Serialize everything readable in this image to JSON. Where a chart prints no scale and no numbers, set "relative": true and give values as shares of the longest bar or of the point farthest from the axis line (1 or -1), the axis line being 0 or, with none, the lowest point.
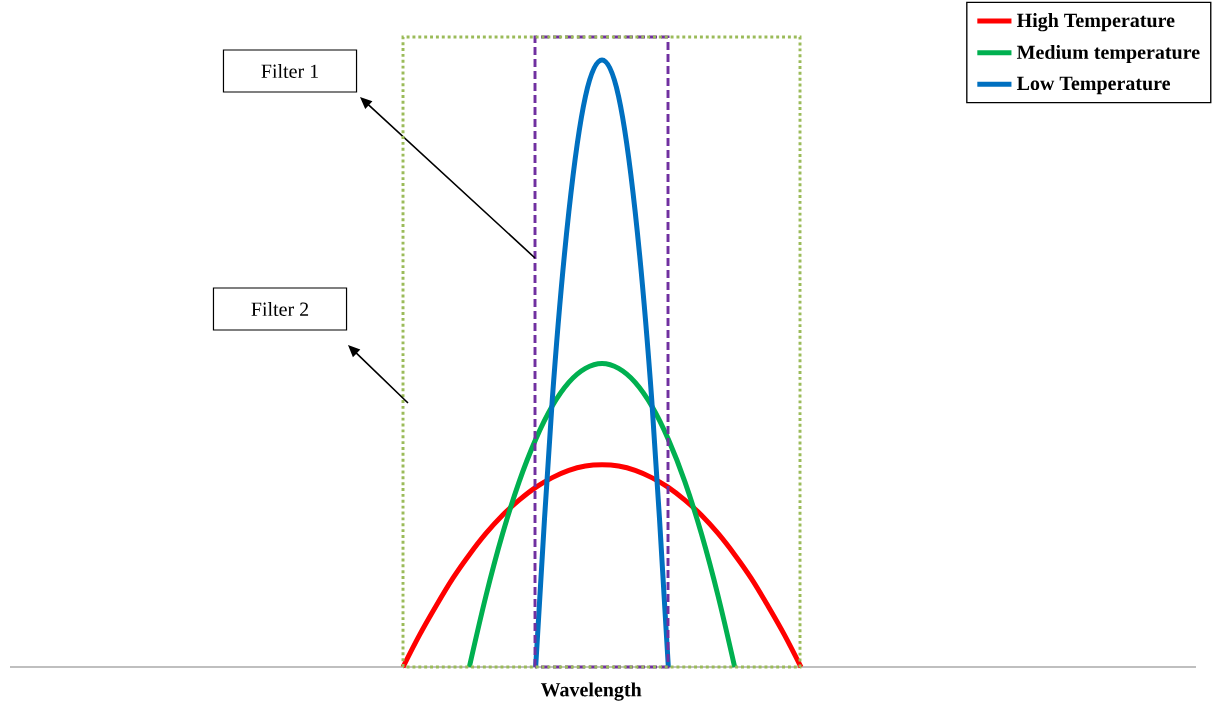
{
  "chart_data": {
    "type": "line",
    "relative": true,
    "xlabel": "Wavelength",
    "legend": "top right",
    "categories": [
      null,
      null,
      null,
      null,
      null,
      null,
      null,
      null,
      null,
      null,
      null,
      null,
      null,
      null,
      null,
      null,
      null,
      null,
      null,
      null,
      null,
      null,
      null,
      null,
      null
    ],
    "series": [
      {
        "name": "High Temperature",
        "color": "#ff0000",
        "values": [
          0,
          0.053,
          0.101,
          0.146,
          0.185,
          0.22,
          0.25,
          0.275,
          0.296,
          0.312,
          0.324,
          0.331,
          0.333,
          0.331,
          0.324,
          0.312,
          0.296,
          0.275,
          0.25,
          0.22,
          0.185,
          0.146,
          0.101,
          0.053,
          0
        ]
      },
      {
        "name": "Medium temperature",
        "color": "#00b050",
        "values": [
          null,
          null,
          null,
          null,
          0,
          0.117,
          0.219,
          0.305,
          0.375,
          0.43,
          0.469,
          0.492,
          0.5,
          0.492,
          0.469,
          0.43,
          0.375,
          0.305,
          0.219,
          0.117,
          0,
          null,
          null,
          null,
          null
        ]
      },
      {
        "name": "Low Temperature",
        "color": "#0070c0",
        "values": [
          null,
          null,
          null,
          null,
          null,
          null,
          null,
          null,
          0,
          0.44,
          0.75,
          0.94,
          1,
          0.94,
          0.75,
          0.44,
          0,
          null,
          null,
          null,
          null,
          null,
          null,
          null,
          null
        ]
      }
    ],
    "annotations": [
      "Filter 1",
      "Filter 2"
    ]
  }
}
